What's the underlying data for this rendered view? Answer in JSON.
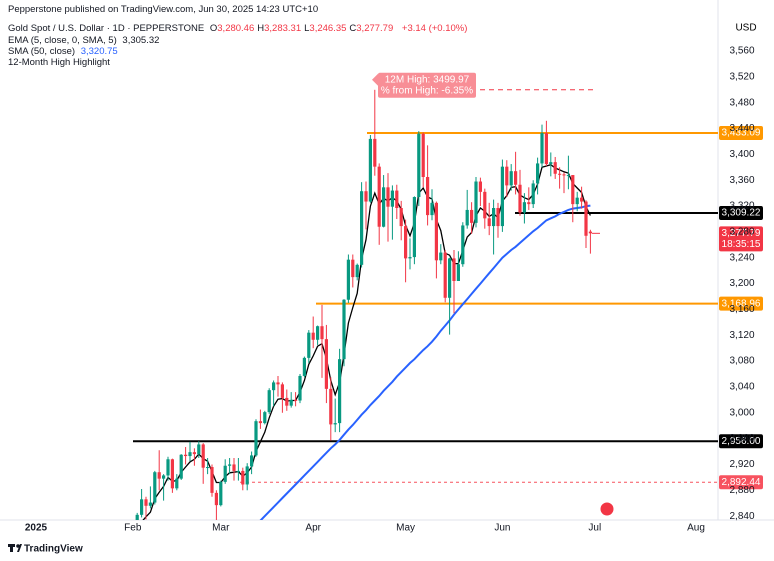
{
  "header": {
    "publisher": "Pepperstone published on TradingView.com, Jun 30, 2025 14:23 UTC+10"
  },
  "chart_data": {
    "type": "candlestick",
    "title": "Gold Spot / U.S. Dollar · 1D · PEPPERSTONE",
    "ohlc_legend": [
      {
        "key": "O",
        "value": "3,280.46"
      },
      {
        "key": "H",
        "value": "3,283.31"
      },
      {
        "key": "L",
        "value": "3,246.35"
      },
      {
        "key": "C",
        "value": "3,277.79"
      }
    ],
    "change": "+3.14 (+0.10%)",
    "currency": "USD",
    "indicator_note": "12-Month High Highlight",
    "up_color": "#089981",
    "down_color": "#f23645",
    "ylim": [
      2834,
      3639
    ],
    "yticks": [
      {
        "value": 2840,
        "label": "2,840"
      },
      {
        "value": 2880,
        "label": "2,880"
      },
      {
        "value": 2920,
        "label": "2,920"
      },
      {
        "value": 2960,
        "label": "2,960"
      },
      {
        "value": 3000,
        "label": "3,000"
      },
      {
        "value": 3040,
        "label": "3,040"
      },
      {
        "value": 3080,
        "label": "3,080"
      },
      {
        "value": 3120,
        "label": "3,120"
      },
      {
        "value": 3160,
        "label": "3,160"
      },
      {
        "value": 3200,
        "label": "3,200"
      },
      {
        "value": 3240,
        "label": "3,240"
      },
      {
        "value": 3280,
        "label": "3,280"
      },
      {
        "value": 3320,
        "label": "3,320"
      },
      {
        "value": 3360,
        "label": "3,360"
      },
      {
        "value": 3400,
        "label": "3,400"
      },
      {
        "value": 3440,
        "label": "3,440"
      },
      {
        "value": 3480,
        "label": "3,480"
      },
      {
        "value": 3520,
        "label": "3,520"
      },
      {
        "value": 3560,
        "label": "3,560"
      }
    ],
    "grid": false,
    "categories": [
      "2025",
      null,
      null,
      null,
      null,
      null,
      null,
      null,
      null,
      null,
      null,
      null,
      null,
      null,
      null,
      null,
      null,
      null,
      null,
      null,
      null,
      null,
      "Feb",
      null,
      null,
      null,
      null,
      null,
      null,
      null,
      null,
      null,
      null,
      null,
      null,
      null,
      null,
      null,
      null,
      null,
      null,
      null,
      "Mar",
      null,
      null,
      null,
      null,
      null,
      null,
      null,
      null,
      null,
      null,
      null,
      null,
      null,
      null,
      null,
      null,
      null,
      null,
      null,
      null,
      "Apr",
      null,
      null,
      null,
      null,
      null,
      null,
      null,
      null,
      null,
      null,
      null,
      null,
      null,
      null,
      null,
      null,
      null,
      null,
      null,
      null,
      "May",
      null,
      null,
      null,
      null,
      null,
      null,
      null,
      null,
      null,
      null,
      null,
      null,
      null,
      null,
      null,
      null,
      null,
      null,
      null,
      null,
      null,
      "Jun",
      null,
      null,
      null,
      null,
      null,
      null,
      null,
      null,
      null,
      null,
      null,
      null,
      null,
      null,
      null,
      null,
      null,
      null,
      null,
      null,
      "Jul",
      null,
      null,
      null,
      null,
      null,
      null,
      null,
      null,
      null,
      null,
      null,
      null,
      null,
      null,
      null,
      null,
      null,
      null,
      null,
      null,
      null,
      null,
      "Aug",
      null,
      null,
      null,
      null,
      null
    ],
    "open": [
      null,
      null,
      null,
      null,
      null,
      null,
      null,
      null,
      null,
      null,
      null,
      null,
      null,
      null,
      null,
      null,
      null,
      null,
      null,
      null,
      null,
      null,
      2800,
      2815,
      2842,
      2866,
      2856,
      2861,
      2908,
      2898,
      2903,
      2928,
      2883,
      2898,
      2935,
      2933,
      2939,
      2936,
      2951,
      2915,
      2916,
      2876,
      2857,
      2893,
      2918,
      2920,
      2910,
      2910,
      2889,
      2917,
      2934,
      2987,
      2984,
      3001,
      3035,
      3047,
      3044,
      3023,
      3011,
      3020,
      3019,
      3057,
      3085,
      3124,
      3113,
      3134,
      3114,
      3037,
      2982,
      2984,
      3083,
      3175,
      3237,
      3210,
      3229,
      3343,
      3327,
      3424,
      3381,
      3288,
      3349,
      3319,
      3344,
      3317,
      3289,
      3239,
      3241,
      3334,
      3432,
      3365,
      3306,
      3325,
      3236,
      3248,
      3178,
      3239,
      3204,
      3230,
      3290,
      3314,
      3294,
      3358,
      3342,
      3301,
      3289,
      3317,
      3289,
      3381,
      3352,
      3374,
      3353,
      3310,
      3326,
      3323,
      3355,
      3386,
      3433,
      3385,
      3388,
      3370,
      3369,
      3368,
      3368,
      3323,
      3333,
      3327,
      3280.46,
      null,
      null,
      null,
      null,
      null,
      null,
      null,
      null,
      null,
      null,
      null,
      null,
      null,
      null,
      null,
      null,
      null,
      null,
      null,
      null,
      null,
      null,
      null,
      null,
      null,
      null,
      null,
      null,
      null
    ],
    "high": [
      null,
      null,
      null,
      null,
      null,
      null,
      null,
      null,
      null,
      null,
      null,
      null,
      null,
      null,
      null,
      null,
      null,
      null,
      null,
      null,
      null,
      null,
      2830,
      2845,
      2882,
      2870,
      2886,
      2910,
      2942,
      2905,
      2932,
      2929,
      2905,
      2936,
      2947,
      2955,
      2945,
      2956,
      2953,
      2930,
      2920,
      2880,
      2895,
      2928,
      2930,
      2930,
      2930,
      2915,
      2922,
      2940,
      2990,
      3005,
      3003,
      3038,
      3050,
      3057,
      3047,
      3036,
      3032,
      3032,
      3060,
      3087,
      3128,
      3149,
      3135,
      3167,
      3136,
      3055,
      3022,
      3099,
      3176,
      3245,
      3245,
      3231,
      3357,
      3358,
      3430,
      3499.97,
      3386,
      3368,
      3371,
      3352,
      3353,
      3328,
      3299,
      3270,
      3335,
      3436,
      3434,
      3414,
      3346,
      3327,
      3261,
      3252,
      3240,
      3252,
      3250,
      3295,
      3345,
      3326,
      3365,
      3364,
      3347,
      3325,
      3330,
      3325,
      3392,
      3391,
      3385,
      3404,
      3376,
      3340,
      3349,
      3360,
      3395,
      3446,
      3452,
      3403,
      3396,
      3380,
      3372,
      3398,
      3368,
      3342,
      3350,
      3329,
      3283.31,
      null,
      null,
      null,
      null,
      null,
      null,
      null,
      null,
      null,
      null,
      null,
      null,
      null,
      null,
      null,
      null,
      null,
      null,
      null,
      null,
      null,
      null,
      null,
      null,
      null,
      null,
      null,
      null,
      null
    ],
    "low": [
      null,
      null,
      null,
      null,
      null,
      null,
      null,
      null,
      null,
      null,
      null,
      null,
      null,
      null,
      null,
      null,
      null,
      null,
      null,
      null,
      null,
      null,
      2790,
      2810,
      2838,
      2835,
      2852,
      2858,
      2880,
      2864,
      2895,
      2876,
      2880,
      2896,
      2920,
      2925,
      2918,
      2930,
      2890,
      2905,
      2870,
      2833,
      2855,
      2890,
      2905,
      2895,
      2895,
      2880,
      2880,
      2905,
      2932,
      2975,
      2982,
      2998,
      3010,
      3025,
      3000,
      3003,
      3008,
      3010,
      3015,
      3055,
      3077,
      3100,
      3105,
      3054,
      3015,
      2957,
      2970,
      2970,
      3072,
      3170,
      3194,
      3205,
      3225,
      3284,
      3325,
      3367,
      3260,
      3287,
      3265,
      3268,
      3300,
      3267,
      3202,
      3222,
      3230,
      3320,
      3349,
      3290,
      3298,
      3208,
      3230,
      3171,
      3121,
      3154,
      3204,
      3226,
      3285,
      3277,
      3287,
      3320,
      3285,
      3275,
      3245,
      3271,
      3280,
      3334,
      3344,
      3338,
      3305,
      3293,
      3314,
      3317,
      3338,
      3380,
      3382,
      3366,
      3362,
      3347,
      3340,
      3346,
      3295,
      3312,
      3316,
      3255,
      3246.35,
      null,
      null,
      null,
      null,
      null,
      null,
      null,
      null,
      null,
      null,
      null,
      null,
      null,
      null,
      null,
      null,
      null,
      null,
      null,
      null,
      null,
      null,
      null,
      null,
      null,
      null,
      null,
      null,
      null
    ],
    "close": [
      null,
      null,
      null,
      null,
      null,
      null,
      null,
      null,
      null,
      null,
      null,
      null,
      null,
      null,
      null,
      null,
      null,
      null,
      null,
      null,
      null,
      null,
      2815,
      2842,
      2866,
      2856,
      2861,
      2908,
      2898,
      2903,
      2928,
      2883,
      2898,
      2935,
      2933,
      2939,
      2936,
      2951,
      2915,
      2916,
      2876,
      2857,
      2893,
      2918,
      2920,
      2910,
      2910,
      2889,
      2917,
      2934,
      2987,
      2984,
      3001,
      3035,
      3047,
      3044,
      3023,
      3011,
      3020,
      3019,
      3057,
      3085,
      3124,
      3113,
      3134,
      3114,
      3037,
      2982,
      2984,
      3083,
      3175,
      3237,
      3210,
      3229,
      3343,
      3327,
      3424,
      3381,
      3288,
      3349,
      3319,
      3344,
      3317,
      3289,
      3239,
      3241,
      3334,
      3432,
      3365,
      3306,
      3325,
      3236,
      3248,
      3178,
      3239,
      3204,
      3230,
      3290,
      3314,
      3294,
      3358,
      3342,
      3301,
      3289,
      3317,
      3289,
      3381,
      3352,
      3374,
      3353,
      3310,
      3326,
      3323,
      3355,
      3386,
      3433,
      3385,
      3388,
      3370,
      3369,
      3368,
      3368,
      3323,
      3333,
      3327,
      3274,
      3277.79,
      null,
      null,
      null,
      null,
      null,
      null,
      null,
      null,
      null,
      null,
      null,
      null,
      null,
      null,
      null,
      null,
      null,
      null,
      null,
      null,
      null,
      null,
      null,
      null,
      null,
      null,
      null,
      null,
      null
    ],
    "series": [
      {
        "name": "EMA (5, close, 0, SMA, 5)",
        "value_label": "3,305.32",
        "color": "#000000",
        "values": [
          null,
          null,
          null,
          null,
          null,
          null,
          null,
          null,
          null,
          null,
          null,
          null,
          null,
          null,
          null,
          null,
          null,
          null,
          null,
          null,
          null,
          null,
          2798,
          2813,
          2831,
          2839,
          2846,
          2867,
          2877,
          2886,
          2900,
          2894,
          2895,
          2908,
          2916,
          2924,
          2928,
          2936,
          2929,
          2925,
          2909,
          2892,
          2892,
          2901,
          2907,
          2908,
          2909,
          2902,
          2907,
          2916,
          2940,
          2955,
          2970,
          2992,
          3010,
          3021,
          3022,
          3018,
          3019,
          3019,
          3032,
          3050,
          3075,
          3088,
          3103,
          3107,
          3084,
          3050,
          3028,
          3047,
          3090,
          3139,
          3163,
          3185,
          3238,
          3268,
          3320,
          3340,
          3323,
          3332,
          3328,
          3333,
          3328,
          3315,
          3290,
          3274,
          3294,
          3340,
          3348,
          3334,
          3331,
          3299,
          3282,
          3247,
          3244,
          3231,
          3231,
          3251,
          3272,
          3279,
          3305,
          3317,
          3312,
          3304,
          3308,
          3302,
          3328,
          3336,
          3349,
          3350,
          3337,
          3333,
          3330,
          3338,
          3354,
          3380,
          3382,
          3384,
          3379,
          3376,
          3373,
          3371,
          3355,
          3348,
          3341,
          3319,
          3305.32,
          null,
          null,
          null,
          null,
          null,
          null,
          null,
          null,
          null,
          null,
          null,
          null,
          null,
          null,
          null,
          null,
          null,
          null,
          null,
          null,
          null,
          null,
          null,
          null,
          null,
          null,
          null,
          null,
          null
        ]
      },
      {
        "name": "SMA (50, close)",
        "value_label": "3,320.75",
        "color": "#2962ff",
        "values": [
          null,
          null,
          null,
          null,
          null,
          null,
          null,
          null,
          null,
          null,
          null,
          null,
          null,
          null,
          null,
          null,
          null,
          null,
          null,
          null,
          null,
          null,
          null,
          null,
          null,
          null,
          null,
          null,
          null,
          null,
          null,
          null,
          null,
          null,
          null,
          null,
          null,
          null,
          null,
          null,
          null,
          null,
          null,
          null,
          null,
          null,
          null,
          null,
          null,
          null,
          2826,
          2833,
          2840,
          2847,
          2854,
          2861,
          2868,
          2875,
          2882,
          2889,
          2896,
          2903,
          2910,
          2917,
          2924,
          2931,
          2938,
          2945,
          2951,
          2958,
          2966,
          2974,
          2981,
          2989,
          2997,
          3004,
          3012,
          3019,
          3026,
          3034,
          3041,
          3048,
          3056,
          3063,
          3070,
          3077,
          3083,
          3090,
          3097,
          3103,
          3110,
          3118,
          3127,
          3135,
          3143,
          3152,
          3160,
          3168,
          3176,
          3184,
          3192,
          3200,
          3208,
          3216,
          3224,
          3232,
          3240,
          3246,
          3252,
          3257,
          3263,
          3269,
          3275,
          3281,
          3286,
          3292,
          3298,
          3301,
          3304,
          3308,
          3311,
          3314,
          3316,
          3317,
          3318,
          3320,
          3320.75,
          null,
          null,
          null,
          null,
          null,
          null,
          null,
          null,
          null,
          null,
          null,
          null,
          null,
          null,
          null,
          null,
          null,
          null,
          null,
          null,
          null,
          null,
          null,
          null,
          null,
          null,
          null,
          null,
          null
        ]
      }
    ],
    "levels": [
      {
        "value": 3433.09,
        "label": "3,433.09",
        "color": "#ff9800",
        "dashed": false
      },
      {
        "value": 3309.22,
        "label": "3,309.22",
        "color": "#000000",
        "dashed": false
      },
      {
        "value": 3168.96,
        "label": "3,168.96",
        "color": "#ff9800",
        "dashed": false
      },
      {
        "value": 2956,
        "label": "2,956.00",
        "color": "#000000",
        "dashed": false
      },
      {
        "value": 2892.44,
        "label": "2,892.44",
        "color": "#f7525f",
        "dashed": true
      }
    ],
    "annotation": {
      "value": 3499.97,
      "lines": [
        "12M High: 3499.97",
        "% from High: -6.35%"
      ],
      "color": "#f23645"
    },
    "last_price": {
      "value": 3277.79,
      "label": "3,277.79",
      "countdown": "18:35:15",
      "color": "#f23645"
    }
  },
  "footer": {
    "brand": "TradingView"
  }
}
